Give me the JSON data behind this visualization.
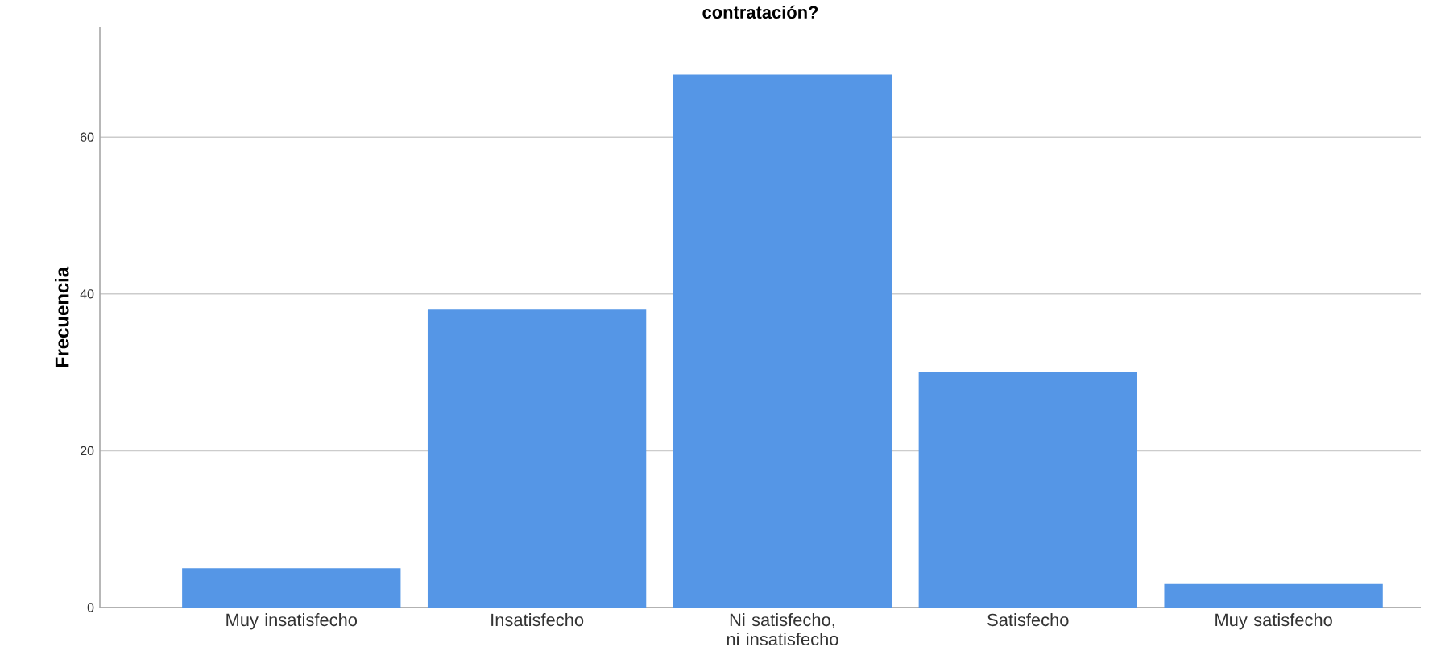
{
  "chart_data": {
    "type": "bar",
    "title": "contratación?",
    "ylabel": "Frecuencia",
    "categories": [
      "Muy insatisfecho",
      "Insatisfecho",
      "Ni satisfecho, ni insatisfecho",
      "Satisfecho",
      "Muy satisfecho"
    ],
    "values": [
      5,
      38,
      68,
      30,
      3
    ],
    "color": "#5596e6",
    "ylim": [
      0,
      74
    ],
    "yticks": [
      0,
      20,
      40,
      60
    ],
    "grid": "y"
  }
}
